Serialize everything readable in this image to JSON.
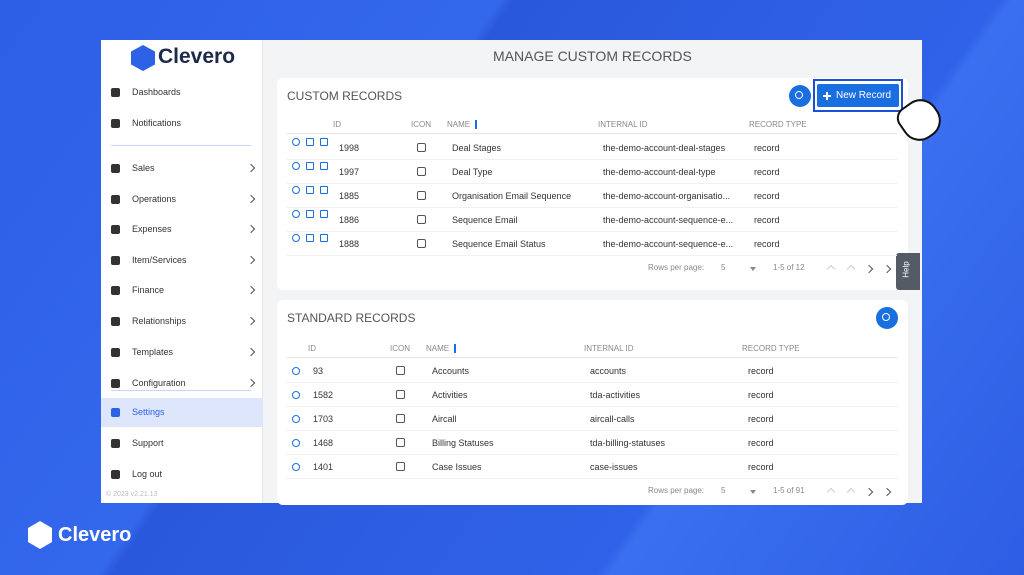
{
  "brand": "Clevero",
  "page_title": "MANAGE CUSTOM RECORDS",
  "sidebar": {
    "items": [
      "Dashboards",
      "Notifications",
      "Sales",
      "Operations",
      "Expenses",
      "Item/Services",
      "Finance",
      "Relationships",
      "Templates",
      "Configuration",
      "Settings",
      "Support",
      "Log out"
    ],
    "footer": "© 2023  v2.21.13"
  },
  "custom_records": {
    "title": "CUSTOM RECORDS",
    "button": "New Record",
    "columns": [
      "ID",
      "ICON",
      "NAME",
      "INTERNAL ID",
      "RECORD TYPE"
    ],
    "rows": [
      [
        "1998",
        "Deal Stages",
        "the-demo-account-deal-stages",
        "record"
      ],
      [
        "1997",
        "Deal Type",
        "the-demo-account-deal-type",
        "record"
      ],
      [
        "1885",
        "Organisation Email Sequence",
        "the-demo-account-organisatio...",
        "record"
      ],
      [
        "1886",
        "Sequence Email",
        "the-demo-account-sequence-e...",
        "record"
      ],
      [
        "1888",
        "Sequence Email Status",
        "the-demo-account-sequence-e...",
        "record"
      ]
    ],
    "pagination": {
      "label": "Rows per page:",
      "size": "5",
      "range": "1-5 of 12"
    }
  },
  "standard_records": {
    "title": "STANDARD RECORDS",
    "columns": [
      "ID",
      "ICON",
      "NAME",
      "INTERNAL ID",
      "RECORD TYPE"
    ],
    "rows": [
      [
        "93",
        "Accounts",
        "accounts",
        "record"
      ],
      [
        "1582",
        "Activities",
        "tda-activities",
        "record"
      ],
      [
        "1703",
        "Aircall",
        "aircall-calls",
        "record"
      ],
      [
        "1468",
        "Billing Statuses",
        "tda-billing-statuses",
        "record"
      ],
      [
        "1401",
        "Case Issues",
        "case-issues",
        "record"
      ]
    ],
    "pagination": {
      "label": "Rows per page:",
      "size": "5",
      "range": "1-5 of 91"
    }
  },
  "help": "Help",
  "footer_brand": "Clevero"
}
